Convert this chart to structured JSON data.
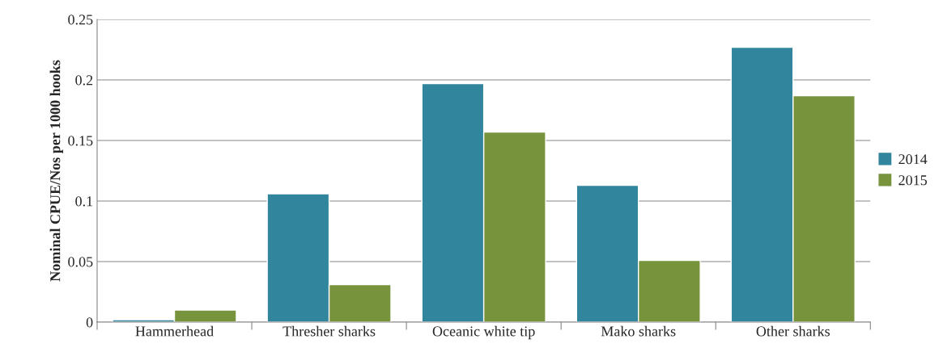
{
  "chart_data": {
    "type": "bar",
    "ylabel": "Nominal CPUE/Nos per 1000 hooks",
    "categories": [
      "Hammerhead",
      "Thresher sharks",
      "Oceanic white tip",
      "Mako sharks",
      "Other sharks"
    ],
    "series": [
      {
        "name": "2014",
        "color": "#31859c",
        "values": [
          0.002,
          0.106,
          0.197,
          0.113,
          0.227
        ]
      },
      {
        "name": "2015",
        "color": "#77933c",
        "values": [
          0.01,
          0.031,
          0.157,
          0.051,
          0.187
        ]
      }
    ],
    "ylim": [
      0,
      0.25
    ],
    "yticks": [
      {
        "value": 0,
        "label": "0"
      },
      0.05,
      0.1,
      0.15,
      0.2,
      0.25
    ],
    "grid": "y",
    "legend": "right"
  }
}
